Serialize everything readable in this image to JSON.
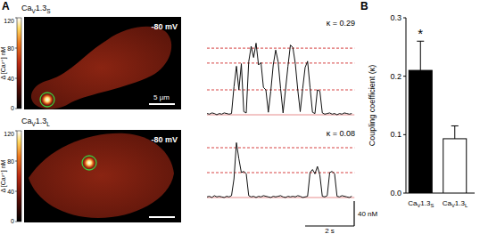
{
  "panel_labels": [
    "A",
    "B"
  ],
  "panel_a": {
    "colorbar": {
      "label": "Δ [Ca²⁺] nM",
      "range": [
        0,
        120
      ],
      "ticks": [
        0,
        40,
        80,
        120
      ]
    },
    "time_s": [
      0,
      0.1,
      0.2,
      0.3,
      0.4,
      0.5,
      0.6,
      0.7,
      0.8,
      0.9,
      1.0,
      1.1,
      1.2,
      1.3,
      1.4,
      1.5,
      1.6,
      1.7,
      1.8,
      1.9,
      2.0,
      2.1,
      2.2,
      2.3,
      2.4,
      2.5,
      2.6,
      2.7,
      2.8,
      2.9,
      3.0,
      3.1,
      3.2,
      3.3,
      3.4,
      3.5,
      3.6,
      3.7,
      3.8,
      3.9,
      4.0,
      4.1,
      4.2,
      4.3,
      4.4,
      4.5,
      4.6,
      4.7,
      4.8,
      4.9,
      5.0,
      5.1,
      5.2,
      5.3,
      5.4,
      5.5,
      5.6,
      5.7,
      5.8,
      5.9
    ],
    "cells": [
      {
        "name": "CaV1.3S",
        "voltage": "-80 mV",
        "kappa_label": "κ = 0.29",
        "scale_bar": "5 µm",
        "levels": [
          40,
          83,
          107
        ],
        "trace": [
          2,
          1,
          3,
          2,
          0,
          2,
          1,
          3,
          2,
          1,
          2,
          45,
          78,
          40,
          82,
          5,
          3,
          85,
          110,
          92,
          115,
          80,
          84,
          44,
          40,
          4,
          38,
          80,
          104,
          85,
          42,
          3,
          40,
          78,
          112,
          108,
          82,
          40,
          5,
          42,
          76,
          86,
          44,
          4,
          2,
          40,
          38,
          3,
          1,
          2,
          3,
          1,
          2,
          0,
          2,
          1,
          3,
          2,
          1,
          2
        ]
      },
      {
        "name": "CaV1.3L",
        "voltage": "-80 mV",
        "kappa_label": "κ = 0.08",
        "levels": [
          40,
          80
        ],
        "trace": [
          1,
          2,
          0,
          3,
          1,
          2,
          1,
          0,
          2,
          1,
          3,
          30,
          88,
          62,
          40,
          42,
          38,
          3,
          1,
          2,
          0,
          2,
          1,
          3,
          2,
          1,
          0,
          2,
          1,
          2,
          3,
          1,
          0,
          2,
          1,
          2,
          1,
          3,
          2,
          0,
          1,
          2,
          40,
          45,
          38,
          50,
          36,
          2,
          1,
          3,
          40,
          42,
          38,
          2,
          1,
          3,
          2,
          1,
          0,
          2
        ]
      }
    ],
    "amplitude_bar": {
      "value": 40,
      "label": "40 nM"
    },
    "time_bar": {
      "value": 2,
      "label": "2 s"
    }
  },
  "chart_data": {
    "type": "bar",
    "categories": [
      "CaV1.3S",
      "CaV1.3L"
    ],
    "values": [
      0.21,
      0.093
    ],
    "errors": [
      0.05,
      0.022
    ],
    "colors": [
      "#000000",
      "#ffffff"
    ],
    "y_label": "Coupling coefficient (κ)",
    "ylim": [
      0,
      0.3
    ],
    "yticks": [
      {
        "value": 0,
        "label": "0.0"
      },
      0.1,
      0.2,
      0.3
    ],
    "annotations": [
      {
        "text": "*",
        "category": "CaV1.3S"
      }
    ]
  }
}
